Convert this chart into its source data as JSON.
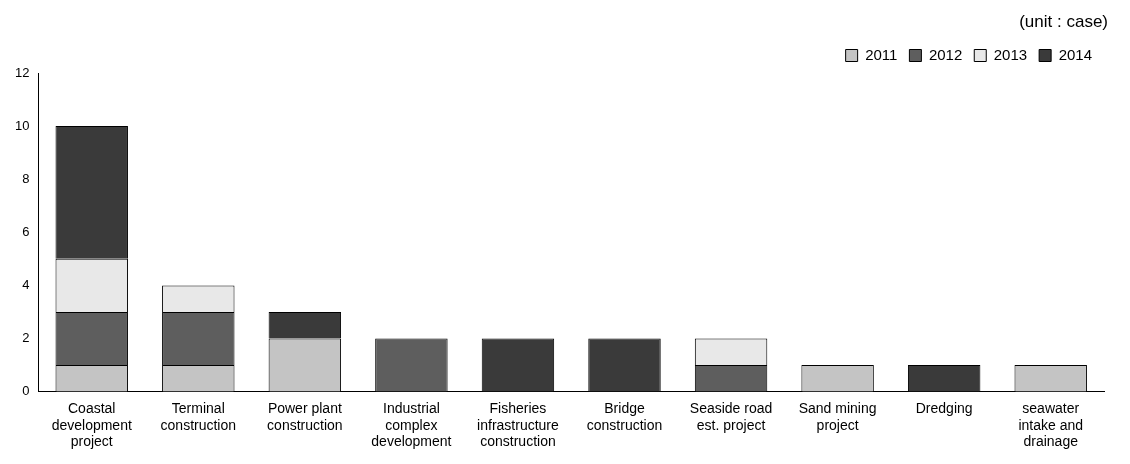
{
  "chart_data": {
    "type": "bar",
    "stacked": true,
    "categories": [
      "Coastal development project",
      "Terminal construction",
      "Power plant construction",
      "Industrial complex development",
      "Fisheries infrastructure construction",
      "Bridge construction",
      "Seaside road est. project",
      "Sand mining project",
      "Dredging",
      "seawater intake and drainage"
    ],
    "series": [
      {
        "name": "2011",
        "color": "#c4c4c4",
        "values": [
          1,
          1,
          2,
          0,
          0,
          0,
          0,
          1,
          0,
          1
        ]
      },
      {
        "name": "2012",
        "color": "#5e5e5e",
        "values": [
          2,
          2,
          0,
          2,
          0,
          0,
          1,
          0,
          0,
          0
        ]
      },
      {
        "name": "2013",
        "color": "#e8e8e8",
        "values": [
          2,
          1,
          0,
          0,
          0,
          0,
          1,
          0,
          0,
          0
        ]
      },
      {
        "name": "2014",
        "color": "#3a3a3a",
        "values": [
          5,
          0,
          1,
          0,
          2,
          2,
          0,
          0,
          1,
          0
        ]
      }
    ],
    "ylim": [
      0,
      12
    ],
    "yticks": [
      0,
      2,
      4,
      6,
      8,
      10,
      12
    ],
    "grid": false,
    "legend": "top right",
    "annotations": [
      "(unit : case)"
    ]
  }
}
